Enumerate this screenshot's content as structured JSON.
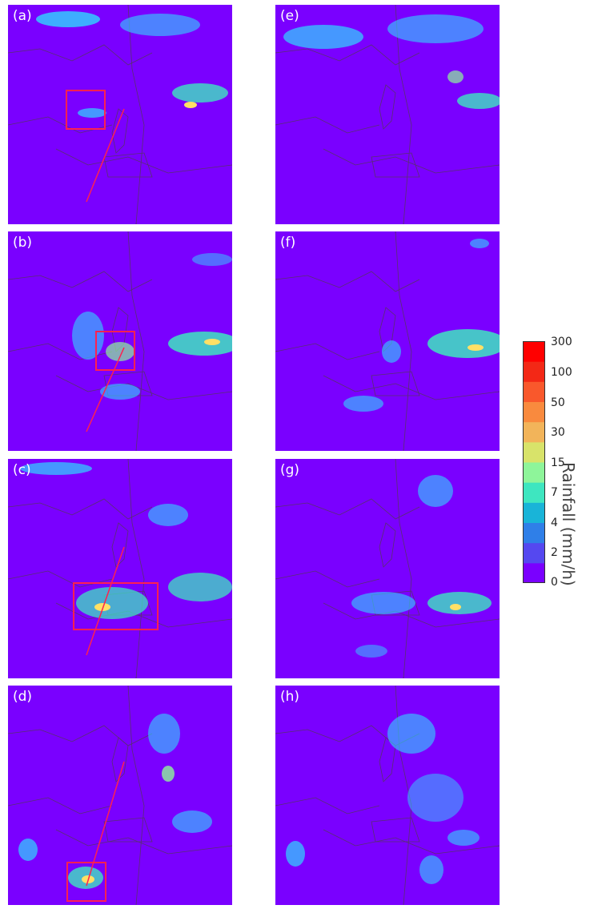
{
  "panels": [
    {
      "id": "a",
      "label": "(a)"
    },
    {
      "id": "b",
      "label": "(b)"
    },
    {
      "id": "c",
      "label": "(c)"
    },
    {
      "id": "d",
      "label": "(d)"
    },
    {
      "id": "e",
      "label": "(e)"
    },
    {
      "id": "f",
      "label": "(f)"
    },
    {
      "id": "g",
      "label": "(g)"
    },
    {
      "id": "h",
      "label": "(h)"
    }
  ],
  "colorbar": {
    "title": "Rainfall (mm/h)",
    "ticks": [
      "300",
      "100",
      "50",
      "30",
      "15",
      "7",
      "4",
      "2",
      "0"
    ],
    "colors": [
      "#7a00ff",
      "#5548f0",
      "#2f7fe8",
      "#19b4d8",
      "#3ee6c0",
      "#8ef59a",
      "#d8e36a",
      "#f2b45a",
      "#f98a3e",
      "#f9582c",
      "#f32816",
      "#ff0000"
    ]
  },
  "colors": {
    "background": "#7a00ff",
    "box": "#ff2050",
    "line": "#ff2050",
    "boundary": "#5a3070",
    "rain_low": "#2fd8ff",
    "rain_mid": "#8ef59a",
    "rain_high": "#ffe066"
  }
}
